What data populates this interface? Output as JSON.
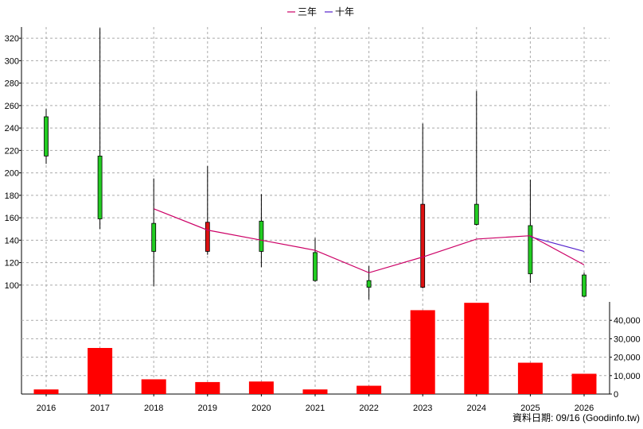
{
  "chart_data": {
    "type": "candlestick",
    "legend": [
      {
        "name": "三年",
        "color": "#cc0066"
      },
      {
        "name": "十年",
        "color": "#5522cc"
      }
    ],
    "years": [
      "2016",
      "2017",
      "2018",
      "2019",
      "2020",
      "2021",
      "2022",
      "2023",
      "2024",
      "2025",
      "2026"
    ],
    "price": {
      "ylim": [
        85,
        330
      ],
      "ticks": [
        100,
        120,
        140,
        160,
        180,
        200,
        220,
        240,
        260,
        280,
        300,
        320
      ],
      "candles": [
        {
          "open": 215,
          "close": 250,
          "high": 257,
          "low": 208,
          "color": "#22cc22"
        },
        {
          "open": 159,
          "close": 215,
          "high": 329,
          "low": 150,
          "color": "#22cc22"
        },
        {
          "open": 130,
          "close": 155,
          "high": 195,
          "low": 99,
          "color": "#22cc22"
        },
        {
          "open": 156,
          "close": 130,
          "high": 206,
          "low": 127,
          "color": "#dd1111"
        },
        {
          "open": 130,
          "close": 157,
          "high": 181,
          "low": 116,
          "color": "#22cc22"
        },
        {
          "open": 104,
          "close": 129,
          "high": 142,
          "low": 103,
          "color": "#22cc22"
        },
        {
          "open": 98,
          "close": 104,
          "high": 117,
          "low": 87,
          "color": "#22cc22"
        },
        {
          "open": 172,
          "close": 98,
          "high": 244,
          "low": 97,
          "color": "#dd1111"
        },
        {
          "open": 154,
          "close": 172,
          "high": 273,
          "low": 153,
          "color": "#22cc22"
        },
        {
          "open": 110,
          "close": 153,
          "high": 194,
          "low": 102,
          "color": "#22cc22"
        },
        {
          "open": 90,
          "close": 109,
          "high": 111,
          "low": 89,
          "color": "#22cc22"
        }
      ],
      "ma3": [
        null,
        null,
        168,
        149,
        140,
        131,
        111,
        125,
        141,
        144,
        118
      ],
      "ma10": [
        null,
        null,
        null,
        null,
        null,
        null,
        null,
        null,
        null,
        143,
        130
      ]
    },
    "volume": {
      "ylim": [
        0,
        50000
      ],
      "ticks": [
        "0",
        "10,000",
        "20,000",
        "30,000",
        "40,000"
      ],
      "tick_values": [
        0,
        10000,
        20000,
        30000,
        40000
      ],
      "values": [
        2500,
        25000,
        8000,
        6500,
        6800,
        2500,
        4500,
        45500,
        49500,
        17000,
        11000
      ],
      "color": "#ff0000"
    }
  },
  "footer": {
    "source": "資料日期: 09/16  (Goodinfo.tw)"
  }
}
